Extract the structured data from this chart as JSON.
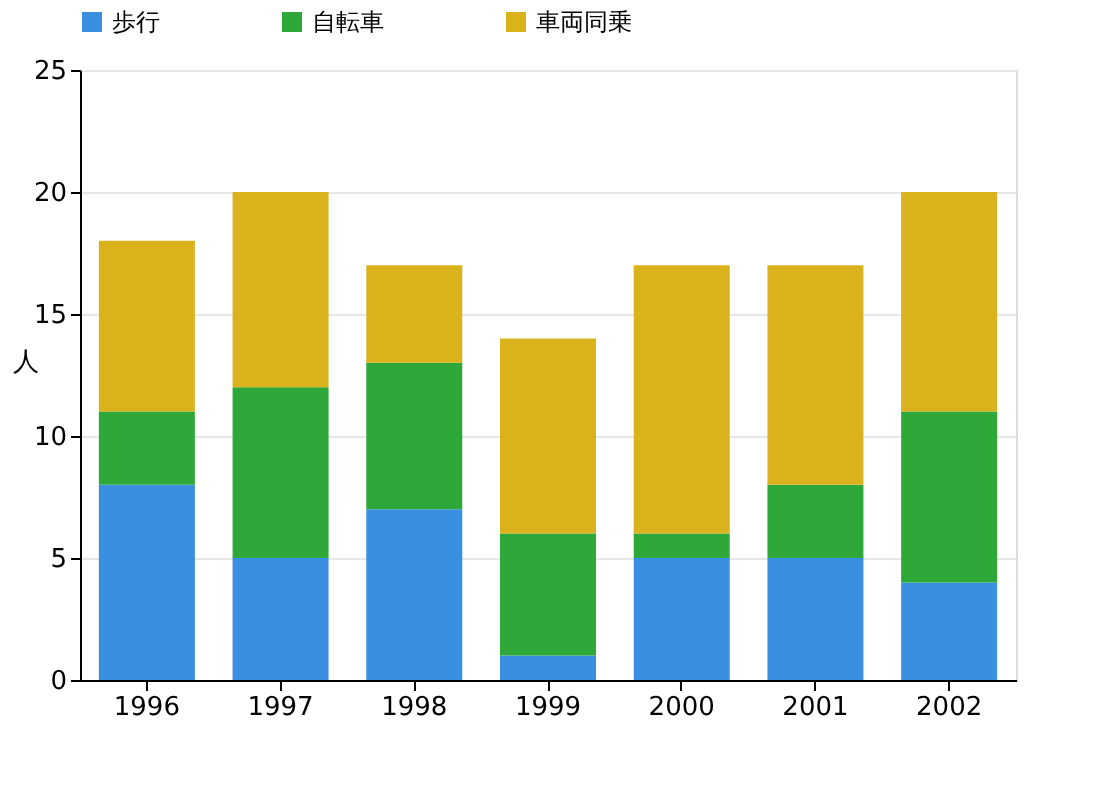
{
  "chart_data": {
    "type": "bar",
    "stacked": true,
    "ylabel": "人",
    "categories": [
      "1996",
      "1997",
      "1998",
      "1999",
      "2000",
      "2001",
      "2002"
    ],
    "series": [
      {
        "name": "歩行",
        "color": "#3a8fe0",
        "values": [
          8,
          5,
          7,
          1,
          5,
          5,
          4
        ]
      },
      {
        "name": "自転車",
        "color": "#2fa83a",
        "values": [
          3,
          7,
          6,
          5,
          1,
          3,
          7
        ]
      },
      {
        "name": "車両同乗",
        "color": "#d9b21c",
        "values": [
          7,
          8,
          4,
          8,
          11,
          9,
          9
        ]
      }
    ],
    "ylim": [
      0,
      25
    ],
    "yticks": [
      0,
      5,
      10,
      15,
      20,
      25
    ],
    "grid": "y",
    "legend": "top"
  }
}
